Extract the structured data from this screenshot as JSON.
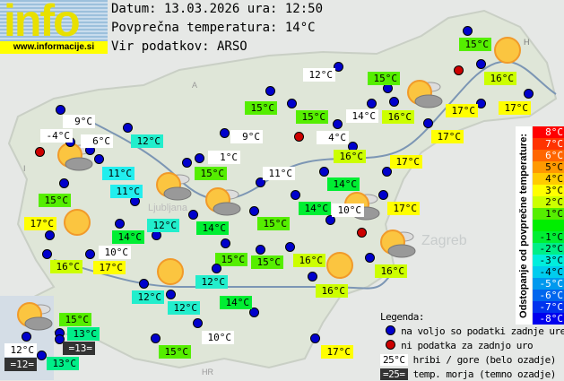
{
  "header": {
    "date_line": "Datum: 13.03.2026 ura: 12:50",
    "avg_line": "Povprečna temperatura: 14°C",
    "source_line": "Vir podatkov: ARSO"
  },
  "logo": {
    "text": "info",
    "url": "www.informacije.si"
  },
  "map_labels": {
    "zagreb": "Zagreb",
    "ljubljana": "Ljubljana",
    "hr": "HR",
    "at": "A",
    "h": "H",
    "i": "I"
  },
  "colors": {
    "17": "#ffff00",
    "16": "#ccff00",
    "15": "#55ee00",
    "14": "#00ee33",
    "13": "#00ee88",
    "12": "#22eecc",
    "11": "#22eeee",
    "hill": "#ffffff",
    "sea": "#333333",
    "dot_ok": "#0000cc",
    "dot_missing": "#cc0000"
  },
  "stations": [
    {
      "t": "12°C",
      "c": "hill"
    },
    {
      "t": "15°C",
      "c": "15"
    },
    {
      "t": "15°C",
      "c": "15"
    },
    {
      "t": "15°C",
      "c": "15"
    },
    {
      "t": "14°C",
      "c": "hill"
    },
    {
      "t": "16°C",
      "c": "16"
    },
    {
      "t": "17°C",
      "c": "17"
    },
    {
      "t": "17°C",
      "c": "17"
    },
    {
      "t": "16°C",
      "c": "16"
    },
    {
      "t": "15°C",
      "c": "15"
    },
    {
      "t": "17°C",
      "c": "17"
    },
    {
      "t": "9°C",
      "c": "hill"
    },
    {
      "t": "4°C",
      "c": "hill"
    },
    {
      "t": "16°C",
      "c": "16"
    },
    {
      "t": "17°C",
      "c": "17"
    },
    {
      "t": "1°C",
      "c": "hill"
    },
    {
      "t": "11°C",
      "c": "hill"
    },
    {
      "t": "14°C",
      "c": "14"
    },
    {
      "t": "14°C",
      "c": "14"
    },
    {
      "t": "10°C",
      "c": "hill"
    },
    {
      "t": "17°C",
      "c": "17"
    },
    {
      "t": "15°C",
      "c": "15"
    },
    {
      "t": "15°C",
      "c": "15"
    },
    {
      "t": "9°C",
      "c": "hill"
    },
    {
      "t": "-4°C",
      "c": "hill"
    },
    {
      "t": "6°C",
      "c": "hill"
    },
    {
      "t": "12°C",
      "c": "12"
    },
    {
      "t": "11°C",
      "c": "11"
    },
    {
      "t": "11°C",
      "c": "11"
    },
    {
      "t": "15°C",
      "c": "15"
    },
    {
      "t": "17°C",
      "c": "17"
    },
    {
      "t": "14°C",
      "c": "14"
    },
    {
      "t": "12°C",
      "c": "12"
    },
    {
      "t": "14°C",
      "c": "14"
    },
    {
      "t": "10°C",
      "c": "hill"
    },
    {
      "t": "16°C",
      "c": "16"
    },
    {
      "t": "17°C",
      "c": "17"
    },
    {
      "t": "15°C",
      "c": "15"
    },
    {
      "t": "15°C",
      "c": "15"
    },
    {
      "t": "16°C",
      "c": "16"
    },
    {
      "t": "16°C",
      "c": "16"
    },
    {
      "t": "16°C",
      "c": "16"
    },
    {
      "t": "12°C",
      "c": "12"
    },
    {
      "t": "12°C",
      "c": "12"
    },
    {
      "t": "12°C",
      "c": "12"
    },
    {
      "t": "14°C",
      "c": "14"
    },
    {
      "t": "15°C",
      "c": "15"
    },
    {
      "t": "13°C",
      "c": "13"
    },
    {
      "t": "=13=",
      "c": "sea"
    },
    {
      "t": "12°C",
      "c": "hill"
    },
    {
      "t": "=12=",
      "c": "sea"
    },
    {
      "t": "13°C",
      "c": "13"
    },
    {
      "t": "10°C",
      "c": "hill"
    },
    {
      "t": "15°C",
      "c": "15"
    },
    {
      "t": "17°C",
      "c": "17"
    }
  ],
  "missing_stations": 4,
  "weather_icons": [
    "sun",
    "sun",
    "sun",
    "sun",
    "partly-cloudy",
    "partly-cloudy",
    "partly-cloudy",
    "partly-cloudy",
    "partly-cloudy",
    "partly-cloudy",
    "partly-cloudy"
  ],
  "scale": {
    "title": "Odstopanje od povprečne temperature:",
    "rows": [
      {
        "label": "8°C",
        "color": "#ff0000",
        "text": "#ffffff"
      },
      {
        "label": "7°C",
        "color": "#ff3300",
        "text": "#ffffff"
      },
      {
        "label": "6°C",
        "color": "#ff6600",
        "text": "#ffffff"
      },
      {
        "label": "5°C",
        "color": "#ff9900",
        "text": "#000000"
      },
      {
        "label": "4°C",
        "color": "#ffcc00",
        "text": "#000000"
      },
      {
        "label": "3°C",
        "color": "#ffff00",
        "text": "#000000"
      },
      {
        "label": "2°C",
        "color": "#ccff00",
        "text": "#000000"
      },
      {
        "label": "1°C",
        "color": "#55ee00",
        "text": "#000000"
      },
      {
        "label": "",
        "color": "#00ee00",
        "text": "#000000"
      },
      {
        "label": "-1°C",
        "color": "#00ee33",
        "text": "#000000"
      },
      {
        "label": "-2°C",
        "color": "#00ee88",
        "text": "#000000"
      },
      {
        "label": "-3°C",
        "color": "#00eedd",
        "text": "#000000"
      },
      {
        "label": "-4°C",
        "color": "#00ccee",
        "text": "#000000"
      },
      {
        "label": "-5°C",
        "color": "#0099ee",
        "text": "#ffffff"
      },
      {
        "label": "-6°C",
        "color": "#0066ee",
        "text": "#ffffff"
      },
      {
        "label": "-7°C",
        "color": "#0033ee",
        "text": "#ffffff"
      },
      {
        "label": "-8°C",
        "color": "#0000ee",
        "text": "#ffffff"
      }
    ]
  },
  "legend": {
    "title": "Legenda:",
    "available": "na voljo so podatki zadnje ure",
    "missing": "ni podatka za zadnjo uro",
    "hill_sample": "25°C",
    "hill_text": "hribi / gore (belo ozadje)",
    "sea_sample": "=25=",
    "sea_text": "temp. morja (temno ozadje)"
  }
}
